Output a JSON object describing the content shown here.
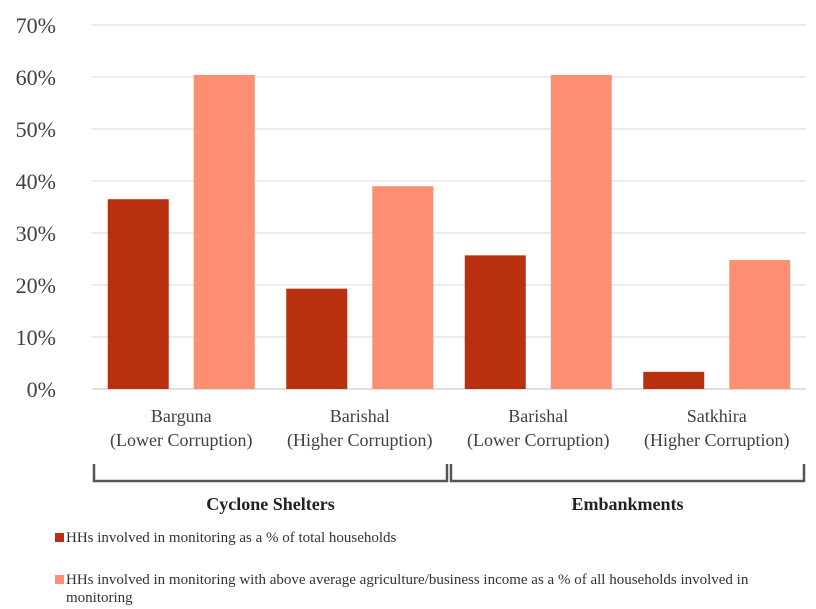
{
  "chart_data": {
    "type": "bar",
    "categories": [
      [
        "Barguna",
        "(Lower Corruption)"
      ],
      [
        "Barishal",
        "(Higher Corruption)"
      ],
      [
        "Barishal",
        "(Lower Corruption)"
      ],
      [
        "Satkhira",
        "(Higher Corruption)"
      ]
    ],
    "groups": [
      {
        "label": "Cyclone Shelters",
        "categories": [
          0,
          1
        ]
      },
      {
        "label": "Embankments",
        "categories": [
          2,
          3
        ]
      }
    ],
    "series": [
      {
        "name": "HHs involved in monitoring as a % of total households",
        "color": "#b8300f",
        "values": [
          36.5,
          19.3,
          25.7,
          3.3
        ]
      },
      {
        "name": "HHs involved in monitoring with above average agriculture/business income as a % of all households involved in monitoring",
        "color": "#fc8f72",
        "values": [
          60.4,
          39.0,
          60.4,
          24.8
        ]
      }
    ],
    "ylim": [
      0,
      70
    ],
    "yticks": [
      0,
      10,
      20,
      30,
      40,
      50,
      60,
      70
    ],
    "ytick_labels": [
      "0%",
      "10%",
      "20%",
      "30%",
      "40%",
      "50%",
      "60%",
      "70%"
    ],
    "grid": true,
    "legend_position": "bottom"
  }
}
